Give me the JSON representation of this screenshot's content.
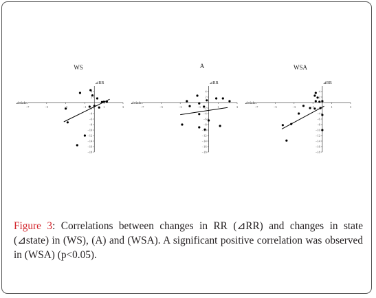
{
  "caption": {
    "label": "Figure 3",
    "text": ": Correlations between changes in RR (⊿RR) and changes in state (⊿state) in (WS), (A) and (WSA). A significant positive correlation was observed in (WSA) (p<0.05)."
  },
  "chart_data": [
    {
      "type": "scatter",
      "title": "WS",
      "xlabel": "⊿state",
      "ylabel": "⊿RR",
      "xlim": [
        -7,
        3
      ],
      "ylim": [
        -18,
        6
      ],
      "xticks": [
        -7,
        -5,
        -3,
        -1,
        1,
        3
      ],
      "yticks": [
        4,
        2,
        -2,
        -4,
        -6,
        -8,
        -10,
        -12,
        -14,
        -16,
        -18
      ],
      "points": [
        {
          "x": -1.5,
          "y": 3.5
        },
        {
          "x": -0.4,
          "y": 4.5
        },
        {
          "x": -0.2,
          "y": 2.6
        },
        {
          "x": 0.3,
          "y": 1.5
        },
        {
          "x": 0.8,
          "y": 0.2
        },
        {
          "x": 1.0,
          "y": 0.3
        },
        {
          "x": 1.3,
          "y": 0.3
        },
        {
          "x": -0.5,
          "y": -1.5
        },
        {
          "x": 0.0,
          "y": -1.2
        },
        {
          "x": 0.5,
          "y": -1.8
        },
        {
          "x": -3.0,
          "y": -2.2
        },
        {
          "x": -2.8,
          "y": -7.2
        },
        {
          "x": -1.0,
          "y": -12.0
        },
        {
          "x": -1.8,
          "y": -15.5
        }
      ],
      "trendline": {
        "x": [
          -3.2,
          1.6
        ],
        "y": [
          -7.0,
          1.2
        ]
      }
    },
    {
      "type": "scatter",
      "title": "A",
      "xlabel": "⊿state",
      "ylabel": "⊿RR",
      "xlim": [
        -7,
        3
      ],
      "ylim": [
        -18,
        6
      ],
      "xticks": [
        -7,
        -5,
        -3,
        -1,
        1,
        3
      ],
      "yticks": [
        4,
        2,
        -2,
        -4,
        -6,
        -8,
        -10,
        -12,
        -14,
        -16,
        -18
      ],
      "points": [
        {
          "x": -1.2,
          "y": 2.5
        },
        {
          "x": -2.3,
          "y": 0.5
        },
        {
          "x": -1.0,
          "y": -0.3
        },
        {
          "x": -0.2,
          "y": 0.8
        },
        {
          "x": 0.8,
          "y": 1.5
        },
        {
          "x": 1.5,
          "y": 1.5
        },
        {
          "x": 2.2,
          "y": 0.5
        },
        {
          "x": -2.0,
          "y": -1.3
        },
        {
          "x": -0.5,
          "y": -1.5
        },
        {
          "x": -1.0,
          "y": -4.2
        },
        {
          "x": 0.0,
          "y": -6.5
        },
        {
          "x": -2.8,
          "y": -8.0
        },
        {
          "x": -1.0,
          "y": -9.0
        },
        {
          "x": -0.4,
          "y": -9.8
        },
        {
          "x": 1.2,
          "y": -8.5
        }
      ],
      "trendline": {
        "x": [
          -3.0,
          2.0
        ],
        "y": [
          -4.4,
          -1.8
        ]
      }
    },
    {
      "type": "scatter",
      "title": "WSA",
      "xlabel": "⊿state",
      "ylabel": "⊿RR",
      "xlim": [
        -7,
        3
      ],
      "ylim": [
        -18,
        6
      ],
      "xticks": [
        -7,
        -5,
        -3,
        -1,
        1,
        3
      ],
      "yticks": [
        4,
        2,
        -2,
        -4,
        -6,
        -8,
        -10,
        -12,
        -14,
        -16,
        -18
      ],
      "points": [
        {
          "x": -0.7,
          "y": 3.5
        },
        {
          "x": -0.8,
          "y": 2.5
        },
        {
          "x": -0.5,
          "y": 1.8
        },
        {
          "x": -0.7,
          "y": 0.5
        },
        {
          "x": -0.3,
          "y": 0.3
        },
        {
          "x": 0.0,
          "y": 0.5
        },
        {
          "x": -2.0,
          "y": -1.2
        },
        {
          "x": -1.3,
          "y": -2.0
        },
        {
          "x": -0.8,
          "y": -2.2
        },
        {
          "x": -0.2,
          "y": -2.0
        },
        {
          "x": -2.5,
          "y": -4.0
        },
        {
          "x": 0.0,
          "y": -4.5
        },
        {
          "x": -3.3,
          "y": -7.8
        },
        {
          "x": -4.2,
          "y": -8.2
        },
        {
          "x": 0.0,
          "y": -10.0
        },
        {
          "x": -3.8,
          "y": -13.8
        }
      ],
      "trendline": {
        "x": [
          -4.3,
          0.2
        ],
        "y": [
          -9.6,
          -1.3
        ]
      }
    }
  ]
}
